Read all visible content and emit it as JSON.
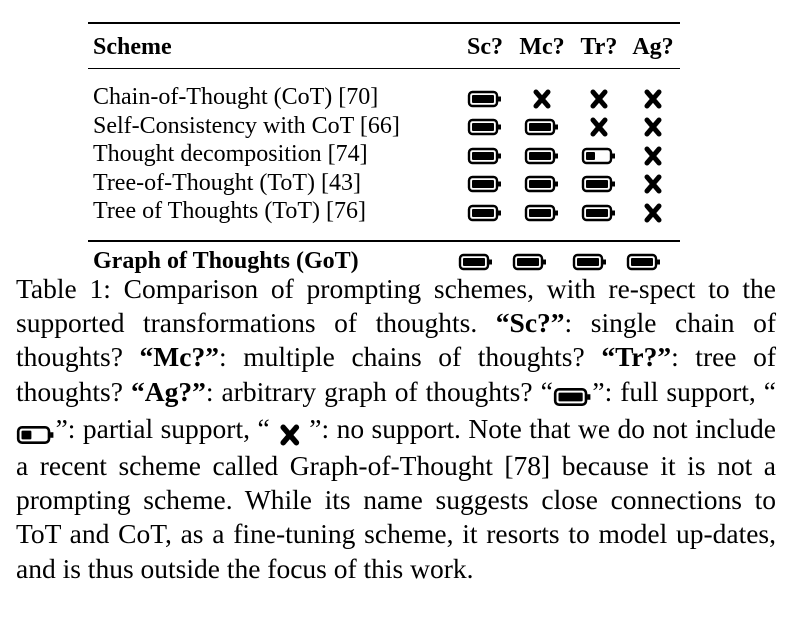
{
  "table": {
    "headers": [
      "Scheme",
      "Sc?",
      "Mc?",
      "Tr?",
      "Ag?"
    ],
    "rows": [
      {
        "scheme": "Chain-of-Thought (CoT) [70]",
        "marks": [
          "full",
          "none",
          "none",
          "none"
        ]
      },
      {
        "scheme": "Self-Consistency with CoT [66]",
        "marks": [
          "full",
          "full",
          "none",
          "none"
        ]
      },
      {
        "scheme": "Thought decomposition [74]",
        "marks": [
          "full",
          "full",
          "partial",
          "none"
        ]
      },
      {
        "scheme": "Tree-of-Thought (ToT) [43]",
        "marks": [
          "full",
          "full",
          "full",
          "none"
        ]
      },
      {
        "scheme": "Tree of Thoughts (ToT) [76]",
        "marks": [
          "full",
          "full",
          "full",
          "none"
        ]
      }
    ],
    "footer": {
      "scheme": "Graph of Thoughts (GoT)",
      "marks": [
        "full",
        "full",
        "full",
        "full"
      ]
    }
  },
  "caption": {
    "lead": "Table 1: Comparison of prompting schemes, with re-spect to the supported transformations of thoughts.",
    "sc_term": "“Sc?”",
    "sc_def": ": single chain of thoughts?",
    "mc_term": "“Mc?”",
    "mc_def": ": multiple chains of thoughts?",
    "tr_term": "“Tr?”",
    "tr_def": ": tree of thoughts?",
    "ag_term": "“Ag?”",
    "ag_def": ": arbitrary graph of thoughts?",
    "q_open_1": "“",
    "full_label": "”: full support,",
    "q_open_2": "“",
    "partial_label": "”: partial support,",
    "q_open_3": "“",
    "none_label": "”: no support.",
    "tail": "Note that we do not include a recent scheme called Graph-of-Thought [78] because it is not a prompting scheme. While its name suggests close connections to ToT and CoT, as a fine-tuning scheme, it resorts to model up-dates, and is thus outside the focus of this work."
  }
}
